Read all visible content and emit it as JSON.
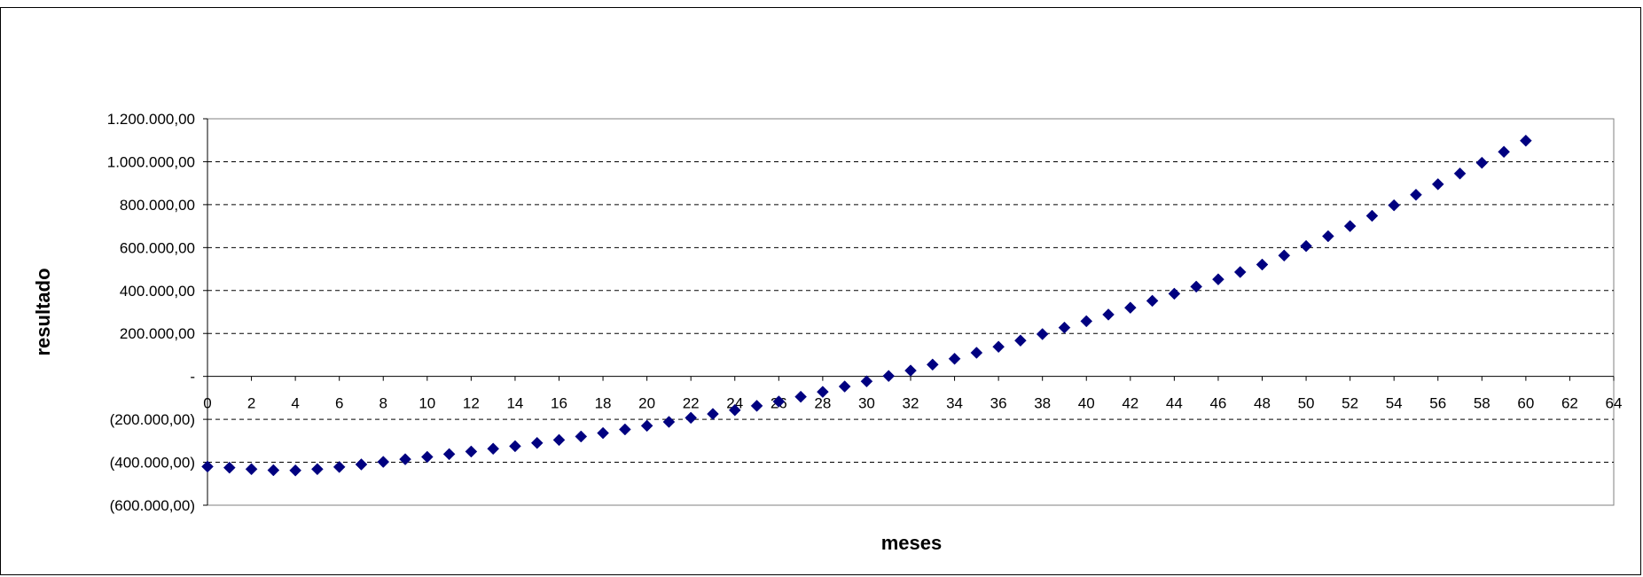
{
  "chart_data": {
    "type": "scatter",
    "title": "",
    "xlabel": "meses",
    "ylabel": "resultado",
    "xlim": [
      0,
      64
    ],
    "ylim": [
      -600000,
      1200000
    ],
    "x_ticks": [
      0,
      2,
      4,
      6,
      8,
      10,
      12,
      14,
      16,
      18,
      20,
      22,
      24,
      26,
      28,
      30,
      32,
      34,
      36,
      38,
      40,
      42,
      44,
      46,
      48,
      50,
      52,
      54,
      56,
      58,
      60,
      62,
      64
    ],
    "y_ticks": [
      {
        "value": 1200000,
        "label": "1.200.000,00"
      },
      {
        "value": 1000000,
        "label": "1.000.000,00"
      },
      {
        "value": 800000,
        "label": "800.000,00"
      },
      {
        "value": 600000,
        "label": "600.000,00"
      },
      {
        "value": 400000,
        "label": "400.000,00"
      },
      {
        "value": 200000,
        "label": "200.000,00"
      },
      {
        "value": 0,
        "label": "-"
      },
      {
        "value": -200000,
        "label": "(200.000,00)"
      },
      {
        "value": -400000,
        "label": "(400.000,00)"
      },
      {
        "value": -600000,
        "label": "(600.000,00)"
      }
    ],
    "grid": "horizontal dashed",
    "legend": "none",
    "marker": "diamond",
    "marker_color": "#000080",
    "series": [
      {
        "x": [
          0,
          1,
          2,
          3,
          4,
          5,
          6,
          7,
          8,
          9,
          10,
          11,
          12,
          13,
          14,
          15,
          16,
          17,
          18,
          19,
          20,
          21,
          22,
          23,
          24,
          25,
          26,
          27,
          28,
          29,
          30,
          31,
          32,
          33,
          34,
          35,
          36,
          37,
          38,
          39,
          40,
          41,
          42,
          43,
          44,
          45,
          46,
          47,
          48,
          49,
          50,
          51,
          52,
          53,
          54,
          55,
          56,
          57,
          58,
          59,
          60
        ],
        "y": [
          -420000,
          -425000,
          -432000,
          -437000,
          -438000,
          -432000,
          -422000,
          -410000,
          -398000,
          -386000,
          -375000,
          -362000,
          -350000,
          -337000,
          -325000,
          -310000,
          -296000,
          -280000,
          -264000,
          -247000,
          -230000,
          -212000,
          -193000,
          -175000,
          -157000,
          -137000,
          -117000,
          -95000,
          -72000,
          -47000,
          -23000,
          2000,
          27000,
          55000,
          82000,
          110000,
          138000,
          167000,
          197000,
          227000,
          257000,
          288000,
          320000,
          352000,
          385000,
          418000,
          452000,
          486000,
          521000,
          563000,
          607000,
          653000,
          700000,
          748000,
          797000,
          846000,
          895000,
          945000,
          995000,
          1046000,
          1098000
        ]
      }
    ]
  }
}
